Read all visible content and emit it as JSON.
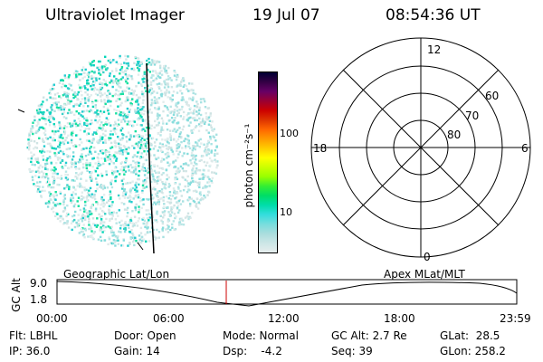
{
  "header": {
    "instrument": "Ultraviolet Imager",
    "date": "19 Jul 07",
    "time": "08:54:36 UT"
  },
  "colorbar": {
    "unit_label": "photon cm⁻²s⁻¹",
    "ticks": [
      "100",
      "10"
    ],
    "colors": [
      "#000033",
      "#330044",
      "#660066",
      "#990033",
      "#cc0000",
      "#dd3300",
      "#ff6600",
      "#ff9900",
      "#ffcc00",
      "#ffff00",
      "#ccff00",
      "#99ff00",
      "#33ee33",
      "#00dd66",
      "#00ddaa",
      "#33dddd",
      "#77dddd",
      "#aadddd",
      "#cce6e6",
      "#e6eded"
    ]
  },
  "polar_plot": {
    "mlt_labels": {
      "top": "12",
      "left": "18",
      "right": "6",
      "bottom": "0"
    },
    "lat_labels": [
      "60",
      "70",
      "80"
    ]
  },
  "orbit_plot": {
    "left_label": "Geographic Lat/Lon",
    "right_label": "Apex MLat/MLT",
    "y_axis_label": "GC Alt",
    "y_ticks": [
      "9.0",
      "1.8"
    ],
    "x_ticks": [
      "00:00",
      "06:00",
      "12:00",
      "18:00",
      "23:59"
    ]
  },
  "status": {
    "filter": "Flt: LBHL",
    "ip": "IP: 36.0",
    "door": "Door: Open",
    "gain": "Gain: 14",
    "mode": "Mode: Normal",
    "dsp": "Dsp:    -4.2",
    "gc_alt": "GC Alt: 2.7 Re",
    "seq": "Seq: 39",
    "glat": "GLat:  28.5",
    "glon": "GLon: 258.2"
  }
}
